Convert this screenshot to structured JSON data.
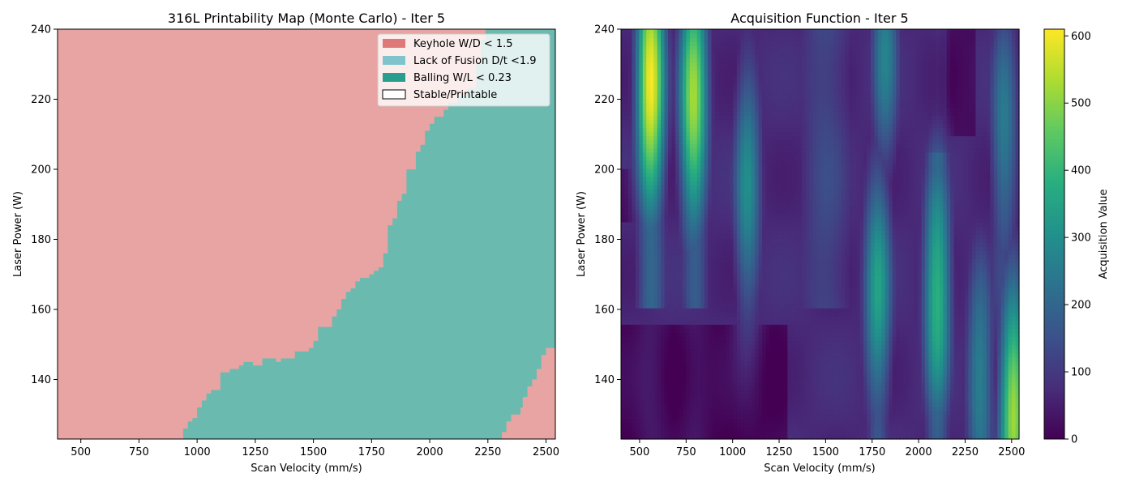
{
  "chart_data": [
    {
      "type": "heatmap",
      "title": "316L Printability Map (Monte Carlo) - Iter 5",
      "xlabel": "Scan Velocity (mm/s)",
      "ylabel": "Laser Power (W)",
      "xlim": [
        400,
        2540
      ],
      "ylim": [
        123,
        240
      ],
      "xticks": [
        500,
        750,
        1000,
        1250,
        1500,
        1750,
        2000,
        2250,
        2500
      ],
      "yticks": [
        140,
        160,
        180,
        200,
        220,
        240
      ],
      "legend_position": "top-right",
      "legend": [
        {
          "label": "Keyhole W/D < 1.5",
          "color": "#df7878"
        },
        {
          "label": "Lack of Fusion D/t <1.9",
          "color": "#7fc4cc"
        },
        {
          "label": "Balling W/L < 0.23",
          "color": "#2a9d8f"
        },
        {
          "label": "Stable/Printable",
          "color": "#ffffff"
        }
      ],
      "region_colors": {
        "keyhole": "#e8a4a2",
        "lack_of_fusion": "#6bbab0"
      },
      "boundary_lower": [
        [
          400,
          123
        ],
        [
          940,
          123
        ],
        [
          940,
          126
        ],
        [
          960,
          126
        ],
        [
          960,
          128
        ],
        [
          980,
          128
        ],
        [
          980,
          129
        ],
        [
          1000,
          129
        ],
        [
          1000,
          132
        ],
        [
          1020,
          132
        ],
        [
          1020,
          134
        ],
        [
          1040,
          134
        ],
        [
          1040,
          136
        ],
        [
          1060,
          136
        ],
        [
          1060,
          137
        ],
        [
          1100,
          137
        ],
        [
          1100,
          142
        ],
        [
          1140,
          142
        ],
        [
          1140,
          143
        ],
        [
          1180,
          143
        ],
        [
          1180,
          144
        ],
        [
          1200,
          144
        ],
        [
          1200,
          145
        ],
        [
          1240,
          145
        ],
        [
          1240,
          144
        ],
        [
          1280,
          144
        ],
        [
          1280,
          146
        ],
        [
          1340,
          146
        ],
        [
          1340,
          145
        ],
        [
          1360,
          145
        ],
        [
          1360,
          146
        ],
        [
          1420,
          146
        ],
        [
          1420,
          148
        ],
        [
          1480,
          148
        ],
        [
          1480,
          149
        ],
        [
          1500,
          149
        ],
        [
          1500,
          151
        ],
        [
          1520,
          151
        ],
        [
          1520,
          155
        ],
        [
          1580,
          155
        ],
        [
          1580,
          158
        ],
        [
          1600,
          158
        ],
        [
          1600,
          160
        ],
        [
          1620,
          160
        ],
        [
          1620,
          163
        ],
        [
          1640,
          163
        ],
        [
          1640,
          165
        ],
        [
          1660,
          165
        ],
        [
          1660,
          166
        ],
        [
          1680,
          166
        ],
        [
          1680,
          168
        ],
        [
          1700,
          168
        ],
        [
          1700,
          169
        ],
        [
          1740,
          169
        ],
        [
          1740,
          170
        ],
        [
          1760,
          170
        ],
        [
          1760,
          171
        ],
        [
          1780,
          171
        ],
        [
          1780,
          172
        ],
        [
          1800,
          172
        ],
        [
          1800,
          176
        ],
        [
          1820,
          176
        ],
        [
          1820,
          184
        ],
        [
          1840,
          184
        ],
        [
          1840,
          186
        ],
        [
          1860,
          186
        ],
        [
          1860,
          191
        ],
        [
          1880,
          191
        ],
        [
          1880,
          193
        ],
        [
          1900,
          193
        ],
        [
          1900,
          200
        ],
        [
          1940,
          200
        ],
        [
          1940,
          205
        ],
        [
          1960,
          205
        ],
        [
          1960,
          207
        ],
        [
          1980,
          207
        ],
        [
          1980,
          211
        ],
        [
          2000,
          211
        ],
        [
          2000,
          213
        ],
        [
          2020,
          213
        ],
        [
          2020,
          215
        ],
        [
          2060,
          215
        ],
        [
          2060,
          217
        ],
        [
          2080,
          217
        ],
        [
          2080,
          219
        ],
        [
          2120,
          219
        ],
        [
          2120,
          221
        ],
        [
          2160,
          221
        ],
        [
          2160,
          223
        ],
        [
          2200,
          223
        ],
        [
          2200,
          230
        ],
        [
          2220,
          230
        ],
        [
          2220,
          237
        ],
        [
          2240,
          237
        ],
        [
          2240,
          240
        ]
      ],
      "boundary_upper": [
        [
          2310,
          123
        ],
        [
          2310,
          125
        ],
        [
          2330,
          125
        ],
        [
          2330,
          128
        ],
        [
          2350,
          128
        ],
        [
          2350,
          130
        ],
        [
          2390,
          130
        ],
        [
          2390,
          132
        ],
        [
          2400,
          132
        ],
        [
          2400,
          135
        ],
        [
          2420,
          135
        ],
        [
          2420,
          138
        ],
        [
          2440,
          138
        ],
        [
          2440,
          140
        ],
        [
          2460,
          140
        ],
        [
          2460,
          143
        ],
        [
          2480,
          143
        ],
        [
          2480,
          147
        ],
        [
          2500,
          147
        ],
        [
          2500,
          149
        ],
        [
          2540,
          149
        ]
      ],
      "boundary_segments_note": ""
    },
    {
      "type": "heatmap",
      "title": "Acquisition Function - Iter 5",
      "xlabel": "Scan Velocity (mm/s)",
      "ylabel": "Laser Power (W)",
      "xlim": [
        400,
        2540
      ],
      "ylim": [
        123,
        240
      ],
      "xticks": [
        500,
        750,
        1000,
        1250,
        1500,
        1750,
        2000,
        2250,
        2500
      ],
      "yticks": [
        140,
        160,
        180,
        200,
        220,
        240
      ],
      "colorbar_label": "Acquisition Value",
      "colorbar_range": [
        0,
        610
      ],
      "colorbar_ticks": [
        0,
        100,
        200,
        300,
        400,
        500,
        600
      ],
      "colormap": "viridis",
      "peaks": [
        {
          "v": 560,
          "p": 225,
          "value": 610
        },
        {
          "v": 790,
          "p": 220,
          "value": 520
        },
        {
          "v": 2100,
          "p": 165,
          "value": 400
        },
        {
          "v": 1780,
          "p": 165,
          "value": 340
        },
        {
          "v": 2510,
          "p": 130,
          "value": 520
        },
        {
          "v": 1080,
          "p": 195,
          "value": 290
        },
        {
          "v": 1820,
          "p": 235,
          "value": 260
        },
        {
          "v": 2330,
          "p": 140,
          "value": 270
        },
        {
          "v": 2460,
          "p": 210,
          "value": 250
        }
      ]
    }
  ]
}
